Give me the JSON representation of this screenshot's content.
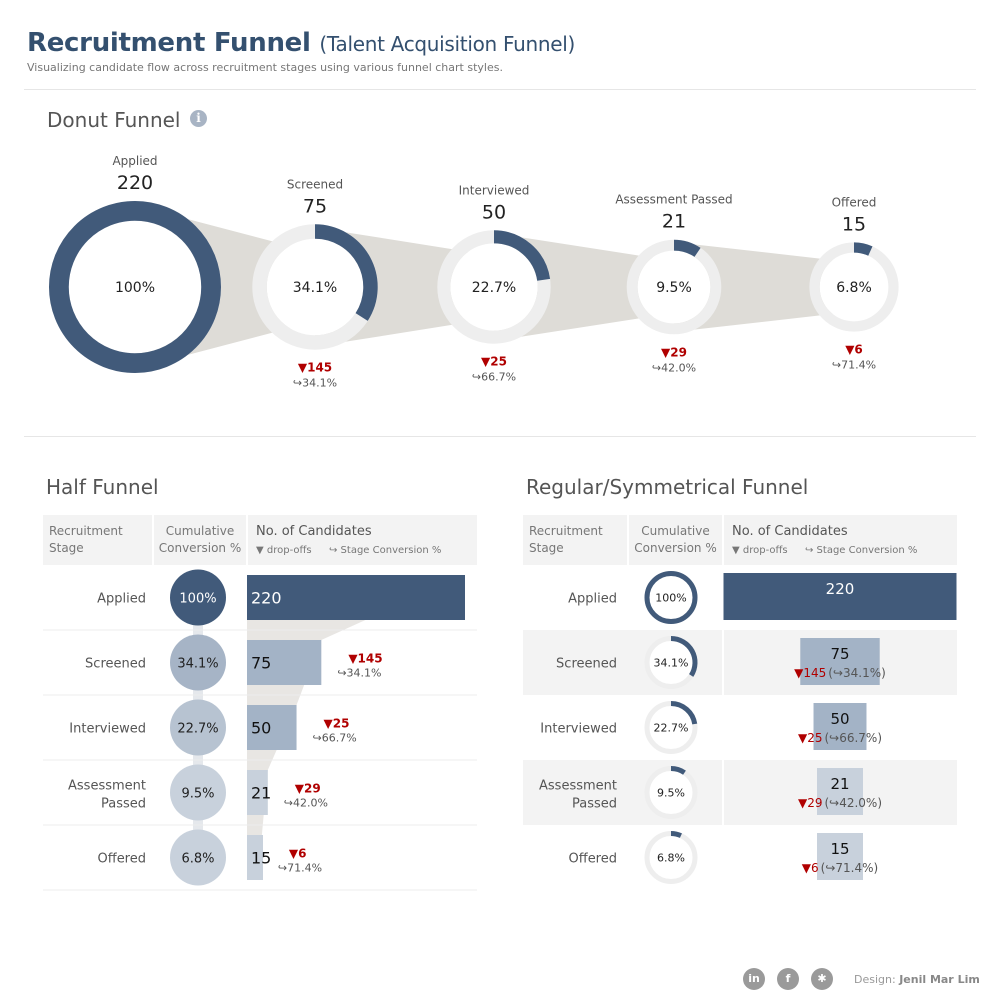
{
  "header": {
    "title": "Recruitment Funnel",
    "title_sub": "(Talent Acquisition Funnel)",
    "subtitle": "Visualizing candidate flow across recruitment stages using various funnel chart styles."
  },
  "sections": {
    "donut_title": "Donut Funnel",
    "half_title": "Half Funnel",
    "regular_title": "Regular/Symmetrical Funnel"
  },
  "table_headers": {
    "stage": [
      "Recruitment",
      "Stage"
    ],
    "cumulative": [
      "Cumulative",
      "Conversion %"
    ],
    "candidates": "No. of Candidates",
    "dropoffs": "▼ drop-offs",
    "stage_conv": "↪ Stage Conversion %"
  },
  "colors": {
    "navy": "#415a7a",
    "light_navy": "#a3b3c6",
    "pale": "#c8d1dc",
    "gray_track": "#eeeeee",
    "connector": "#dedcd7",
    "red": "#b00000"
  },
  "chart_data": {
    "type": "funnel",
    "stages": [
      "Applied",
      "Screened",
      "Interviewed",
      "Assessment Passed",
      "Offered"
    ],
    "stage_labels_two_line": [
      [
        "Applied"
      ],
      [
        "Screened"
      ],
      [
        "Interviewed"
      ],
      [
        "Assessment",
        "Passed"
      ],
      [
        "Offered"
      ]
    ],
    "candidates": [
      220,
      75,
      50,
      21,
      15
    ],
    "cumulative_conversion": [
      "100%",
      "34.1%",
      "22.7%",
      "9.5%",
      "6.8%"
    ],
    "cumulative_conversion_values": [
      100,
      34.1,
      22.7,
      9.5,
      6.8
    ],
    "dropoffs": [
      null,
      "▼145",
      "▼25",
      "▼29",
      "▼6"
    ],
    "stage_conversion": [
      null,
      "↪34.1%",
      "↪66.7%",
      "↪42.0%",
      "↪71.4%"
    ],
    "regular_sub": [
      null,
      "(↪34.1%)",
      "(↪66.7%)",
      "(↪42.0%)",
      "(↪71.4%)"
    ]
  },
  "footer": {
    "icons": [
      "linkedin-icon",
      "facebook-icon",
      "tableau-icon"
    ],
    "icon_glyphs": [
      "in",
      "f",
      "✱"
    ],
    "credit_label": "Design:",
    "credit_name": "Jenil Mar Lim"
  }
}
